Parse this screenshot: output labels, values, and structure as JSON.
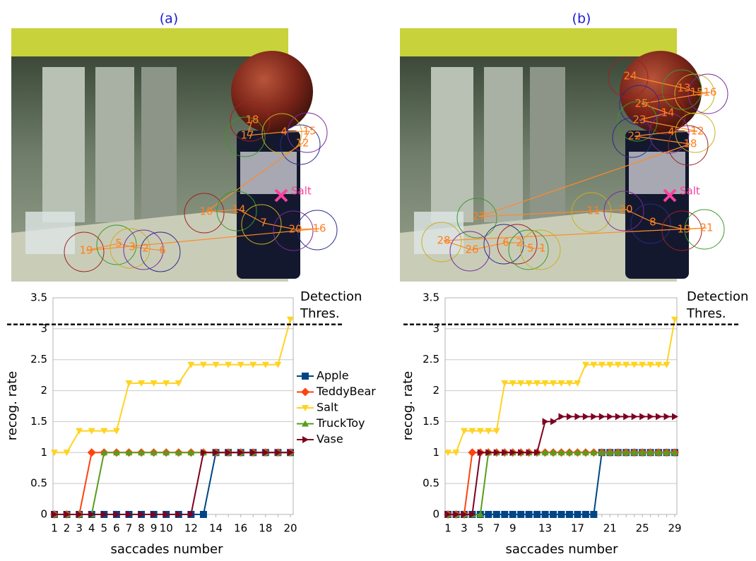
{
  "chart_data": [
    {
      "type": "line",
      "ylabel": "recog. rate",
      "xlabel": "saccades number",
      "categories": [
        "1",
        "2",
        "3",
        "4",
        "5",
        "6",
        "7",
        "8",
        "9",
        "10",
        null,
        "12",
        null,
        "14",
        null,
        "16",
        null,
        "18",
        null,
        "20"
      ],
      "ylim": [
        0,
        3.5
      ],
      "yticks": [
        0,
        0.5,
        1,
        1.5,
        2,
        2.5,
        3,
        3.5
      ],
      "grid": true,
      "legend": "right",
      "threshold": {
        "value": 3.07,
        "lines": [
          "Detection",
          "Thres."
        ]
      },
      "series": [
        {
          "name": "Apple",
          "color": "#004586",
          "marker": "square",
          "values": [
            0,
            0,
            0,
            0,
            0,
            0,
            0,
            0,
            0,
            0,
            0,
            0,
            0,
            1,
            1,
            1,
            1,
            1,
            1,
            1
          ]
        },
        {
          "name": "TeddyBear",
          "color": "#ff420e",
          "marker": "diamond",
          "values": [
            0,
            0,
            0,
            1,
            1,
            1,
            1,
            1,
            1,
            1,
            1,
            1,
            1,
            1,
            1,
            1,
            1,
            1,
            1,
            1
          ]
        },
        {
          "name": "Salt",
          "color": "#ffd320",
          "marker": "down",
          "values": [
            1,
            1,
            1.35,
            1.35,
            1.35,
            1.35,
            2.12,
            2.12,
            2.12,
            2.12,
            2.12,
            2.42,
            2.42,
            2.42,
            2.42,
            2.42,
            2.42,
            2.42,
            2.42,
            3.15
          ]
        },
        {
          "name": "TruckToy",
          "color": "#579d1c",
          "marker": "up",
          "values": [
            0,
            0,
            0,
            0,
            1,
            1,
            1,
            1,
            1,
            1,
            1,
            1,
            1,
            1,
            1,
            1,
            1,
            1,
            1,
            1
          ]
        },
        {
          "name": "Vase",
          "color": "#7e0021",
          "marker": "right",
          "values": [
            0,
            0,
            0,
            0,
            0,
            0,
            0,
            0,
            0,
            0,
            0,
            0,
            1,
            1,
            1,
            1,
            1,
            1,
            1,
            1
          ]
        }
      ]
    },
    {
      "type": "line",
      "ylabel": "recog. rate",
      "xlabel": "saccades number",
      "categories": [
        "1",
        null,
        "3",
        null,
        "5",
        null,
        "7",
        null,
        "9",
        null,
        null,
        null,
        "13",
        null,
        null,
        null,
        "17",
        null,
        null,
        null,
        "21",
        null,
        null,
        null,
        "25",
        null,
        null,
        null,
        "29"
      ],
      "ylim": [
        0,
        3.5
      ],
      "yticks": [
        0,
        0.5,
        1,
        1.5,
        2,
        2.5,
        3,
        3.5
      ],
      "grid": true,
      "threshold": {
        "value": 3.07,
        "lines": [
          "Detection",
          "Thres."
        ]
      },
      "series": [
        {
          "name": "Apple",
          "color": "#004586",
          "marker": "square",
          "values": [
            0,
            0,
            0,
            0,
            0,
            0,
            0,
            0,
            0,
            0,
            0,
            0,
            0,
            0,
            0,
            0,
            0,
            0,
            0,
            1,
            1,
            1,
            1,
            1,
            1,
            1,
            1,
            1,
            1
          ]
        },
        {
          "name": "TeddyBear",
          "color": "#ff420e",
          "marker": "diamond",
          "values": [
            0,
            0,
            0,
            1,
            1,
            1,
            1,
            1,
            1,
            1,
            1,
            1,
            1,
            1,
            1,
            1,
            1,
            1,
            1,
            1,
            1,
            1,
            1,
            1,
            1,
            1,
            1,
            1,
            1
          ]
        },
        {
          "name": "Salt",
          "color": "#ffd320",
          "marker": "down",
          "values": [
            1,
            1,
            1.35,
            1.35,
            1.35,
            1.35,
            1.35,
            2.12,
            2.12,
            2.12,
            2.12,
            2.12,
            2.12,
            2.12,
            2.12,
            2.12,
            2.12,
            2.42,
            2.42,
            2.42,
            2.42,
            2.42,
            2.42,
            2.42,
            2.42,
            2.42,
            2.42,
            2.42,
            3.15
          ]
        },
        {
          "name": "TruckToy",
          "color": "#579d1c",
          "marker": "up",
          "values": [
            0,
            0,
            0,
            0,
            0,
            1,
            1,
            1,
            1,
            1,
            1,
            1,
            1,
            1,
            1,
            1,
            1,
            1,
            1,
            1,
            1,
            1,
            1,
            1,
            1,
            1,
            1,
            1,
            1
          ]
        },
        {
          "name": "Vase",
          "color": "#7e0021",
          "marker": "right",
          "values": [
            0,
            0,
            0,
            0,
            1,
            1,
            1,
            1,
            1,
            1,
            1,
            1,
            1.5,
            1.5,
            1.58,
            1.58,
            1.58,
            1.58,
            1.58,
            1.58,
            1.58,
            1.58,
            1.58,
            1.58,
            1.58,
            1.58,
            1.58,
            1.58,
            1.58
          ]
        }
      ]
    }
  ],
  "photos": [
    {
      "caption": "(a)",
      "target": "Salt",
      "labels": [
        "18",
        "17",
        "4",
        "15",
        "12",
        "10",
        "14",
        "7",
        "20",
        "16",
        "19",
        "5",
        "3",
        "2",
        "6"
      ]
    },
    {
      "caption": "(b)",
      "target": "Salt",
      "labels": [
        "24",
        "13",
        "15",
        "16",
        "25",
        "14",
        "23",
        "12",
        "4",
        "22",
        "18",
        "27",
        "11",
        "20",
        "8",
        "19",
        "21",
        "28",
        "26",
        "6",
        "2",
        "5",
        "1"
      ]
    }
  ]
}
